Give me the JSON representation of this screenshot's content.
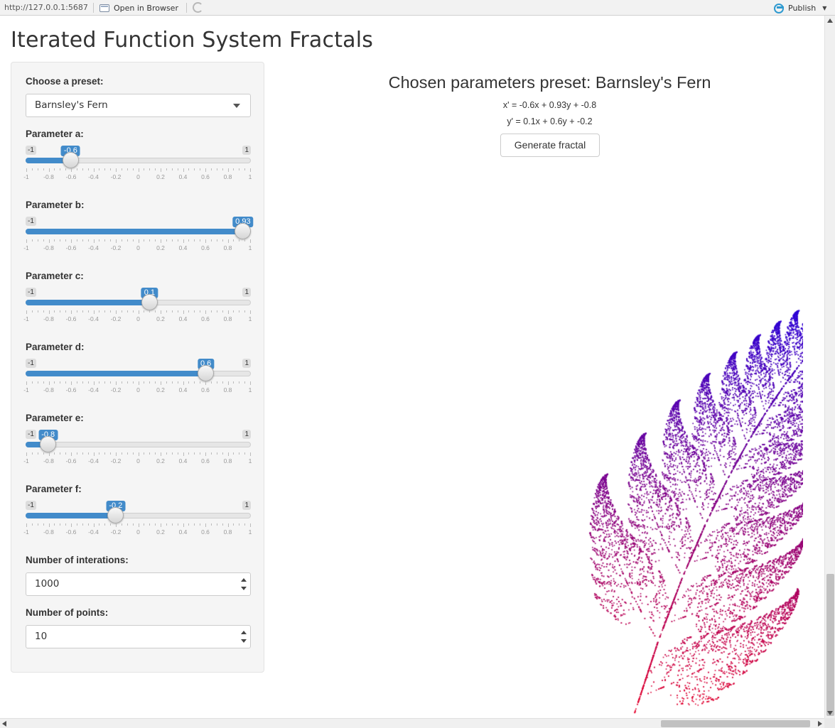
{
  "toolbar": {
    "url": "http://127.0.0.1:5687",
    "open_in_browser": "Open in Browser",
    "publish": "Publish"
  },
  "page": {
    "title": "Iterated Function System Fractals"
  },
  "sidebar": {
    "preset_label": "Choose a preset:",
    "preset_value": "Barnsley's Fern",
    "sliders": [
      {
        "label": "Parameter a:",
        "min": "-1",
        "max": "1",
        "value": "-0.6",
        "value_num": -0.6
      },
      {
        "label": "Parameter b:",
        "min": "-1",
        "max": "1",
        "value": "0.93",
        "value_num": 0.93
      },
      {
        "label": "Parameter c:",
        "min": "-1",
        "max": "1",
        "value": "0.1",
        "value_num": 0.1
      },
      {
        "label": "Parameter d:",
        "min": "-1",
        "max": "1",
        "value": "0.6",
        "value_num": 0.6
      },
      {
        "label": "Parameter e:",
        "min": "-1",
        "max": "1",
        "value": "-0.8",
        "value_num": -0.8
      },
      {
        "label": "Parameter f:",
        "min": "-1",
        "max": "1",
        "value": "-0.2",
        "value_num": -0.2
      }
    ],
    "tick_labels": [
      "-1",
      "-0.8",
      "-0.6",
      "-0.4",
      "-0.2",
      "0",
      "0.2",
      "0.4",
      "0.6",
      "0.8",
      "1"
    ],
    "iterations_label": "Number of interations:",
    "iterations_value": "1000",
    "points_label": "Number of points:",
    "points_value": "10"
  },
  "main": {
    "heading": "Chosen parameters preset: Barnsley's Fern",
    "formula_x": "x' = -0.6x + 0.93y + -0.8",
    "formula_y": "y' = 0.1x + 0.6y + -0.2",
    "generate_button": "Generate fractal"
  },
  "colors": {
    "accent": "#428bca",
    "fern_top": "#0000ff",
    "fern_bottom": "#e8002a"
  }
}
